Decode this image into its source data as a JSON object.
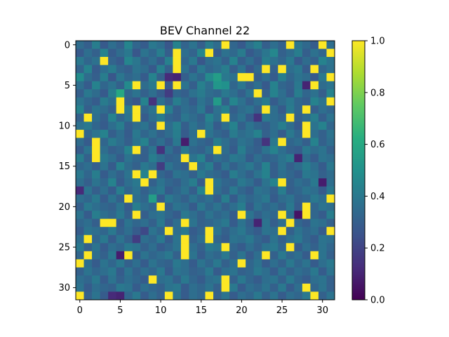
{
  "chart_data": {
    "type": "heatmap",
    "title": "BEV Channel 22",
    "xlabel": "",
    "ylabel": "",
    "rows": 32,
    "cols": 32,
    "x_ticks": [
      0,
      5,
      10,
      15,
      20,
      25,
      30
    ],
    "y_ticks": [
      0,
      5,
      10,
      15,
      20,
      25,
      30
    ],
    "x_tick_labels": [
      "0",
      "5",
      "10",
      "15",
      "20",
      "25",
      "30"
    ],
    "y_tick_labels": [
      "0",
      "5",
      "10",
      "15",
      "20",
      "25",
      "30"
    ],
    "colorbar": {
      "vmin": 0.0,
      "vmax": 1.0,
      "ticks": [
        0.0,
        0.2,
        0.4,
        0.6,
        0.8,
        1.0
      ],
      "tick_labels": [
        "0.0",
        "0.2",
        "0.4",
        "0.6",
        "0.8",
        "1.0"
      ],
      "colormap": "viridis"
    },
    "grid": false,
    "values": [
      [
        0.35,
        0.3,
        0.42,
        0.28,
        0.36,
        0.31,
        0.45,
        0.33,
        0.29,
        0.4,
        0.36,
        0.27,
        0.44,
        0.32,
        0.38,
        0.3,
        0.41,
        0.35,
        1.0,
        0.33,
        0.28,
        0.37,
        0.43,
        0.3,
        0.36,
        0.31,
        1.0,
        0.39,
        0.34,
        0.29,
        1.0,
        0.36
      ],
      [
        0.28,
        0.36,
        0.31,
        0.44,
        0.29,
        0.35,
        0.4,
        0.27,
        0.38,
        0.33,
        0.42,
        0.3,
        1.0,
        0.36,
        0.32,
        0.45,
        1.0,
        0.29,
        0.37,
        0.34,
        0.41,
        0.28,
        0.33,
        0.39,
        0.46,
        0.31,
        0.35,
        0.42,
        0.3,
        0.37,
        0.33,
        1.0
      ],
      [
        0.4,
        0.33,
        0.37,
        1.0,
        0.32,
        0.28,
        0.45,
        0.39,
        0.31,
        0.36,
        0.29,
        0.43,
        1.0,
        0.33,
        0.4,
        0.27,
        0.35,
        0.38,
        0.31,
        0.44,
        0.3,
        0.36,
        0.29,
        0.42,
        0.37,
        0.33,
        0.4,
        0.28,
        0.35,
        0.31,
        0.44,
        0.38
      ],
      [
        0.32,
        0.44,
        0.29,
        0.36,
        0.41,
        0.33,
        0.3,
        0.38,
        0.35,
        0.28,
        0.43,
        0.31,
        1.0,
        0.37,
        0.29,
        0.4,
        0.33,
        0.36,
        0.42,
        0.3,
        0.38,
        0.27,
        0.34,
        1.0,
        0.31,
        1.0,
        0.36,
        0.4,
        0.29,
        1.0,
        0.33,
        0.37
      ],
      [
        0.48,
        0.35,
        0.3,
        0.42,
        0.27,
        0.39,
        0.33,
        0.36,
        0.29,
        0.44,
        0.31,
        0.12,
        0.1,
        0.3,
        0.38,
        0.33,
        0.47,
        0.55,
        0.4,
        0.37,
        1.0,
        1.0,
        0.3,
        0.36,
        0.29,
        0.42,
        0.33,
        0.38,
        0.35,
        0.28,
        0.4,
        1.0
      ],
      [
        0.36,
        0.29,
        0.44,
        0.33,
        0.38,
        0.31,
        0.47,
        1.0,
        0.35,
        0.4,
        1.0,
        0.28,
        1.0,
        0.38,
        0.3,
        0.43,
        0.36,
        0.52,
        0.5,
        0.33,
        0.39,
        0.31,
        0.36,
        0.28,
        0.44,
        0.33,
        0.3,
        0.4,
        0.1,
        1.0,
        0.35,
        0.38
      ],
      [
        0.3,
        0.4,
        0.35,
        0.28,
        0.42,
        0.6,
        0.33,
        0.38,
        0.31,
        0.36,
        0.29,
        0.18,
        0.33,
        0.3,
        0.37,
        0.41,
        0.35,
        0.33,
        0.4,
        0.36,
        0.3,
        0.38,
        1.0,
        0.31,
        0.44,
        0.36,
        0.29,
        0.42,
        0.33,
        0.37,
        0.3,
        0.44
      ],
      [
        0.38,
        0.33,
        0.29,
        0.41,
        0.36,
        1.0,
        0.31,
        0.27,
        0.44,
        0.15,
        0.37,
        0.3,
        0.42,
        0.35,
        0.29,
        0.38,
        0.33,
        0.54,
        0.31,
        0.45,
        0.37,
        0.3,
        0.36,
        0.41,
        0.29,
        0.35,
        0.4,
        0.33,
        0.3,
        0.44,
        0.38,
        1.0
      ],
      [
        0.44,
        0.3,
        0.38,
        0.35,
        0.31,
        1.0,
        0.4,
        1.0,
        0.33,
        0.38,
        1.0,
        0.42,
        0.3,
        0.36,
        0.33,
        0.4,
        0.28,
        0.37,
        0.43,
        0.3,
        0.35,
        0.38,
        0.31,
        1.0,
        0.36,
        0.29,
        0.41,
        0.33,
        1.0,
        0.3,
        0.36,
        0.33
      ],
      [
        0.31,
        1.0,
        0.36,
        0.3,
        0.44,
        0.33,
        0.38,
        1.0,
        0.29,
        0.36,
        0.41,
        0.33,
        0.3,
        0.39,
        0.35,
        0.31,
        0.44,
        0.36,
        1.0,
        0.33,
        0.38,
        0.29,
        0.15,
        0.4,
        0.36,
        0.33,
        1.0,
        0.31,
        0.35,
        0.42,
        0.3,
        0.38
      ],
      [
        0.37,
        0.4,
        0.33,
        0.29,
        0.36,
        0.42,
        0.3,
        0.35,
        0.38,
        0.31,
        1.0,
        0.36,
        0.43,
        0.3,
        0.38,
        0.33,
        0.4,
        0.29,
        0.36,
        0.44,
        0.31,
        0.38,
        0.33,
        0.3,
        0.36,
        0.42,
        0.35,
        0.28,
        1.0,
        0.38,
        0.44,
        0.33
      ],
      [
        1.0,
        0.33,
        0.38,
        0.44,
        0.3,
        0.36,
        0.29,
        0.4,
        0.33,
        0.37,
        0.31,
        0.35,
        0.42,
        0.29,
        0.36,
        1.0,
        0.38,
        0.33,
        0.3,
        0.41,
        0.35,
        0.38,
        0.44,
        0.31,
        0.36,
        0.29,
        0.4,
        0.33,
        1.0,
        0.36,
        0.31,
        0.38
      ],
      [
        0.35,
        0.29,
        1.0,
        0.33,
        0.41,
        0.36,
        0.3,
        0.38,
        0.44,
        0.31,
        0.36,
        0.29,
        0.4,
        0.08,
        0.37,
        0.33,
        0.3,
        0.42,
        0.36,
        0.31,
        0.38,
        0.35,
        0.29,
        0.15,
        0.4,
        1.0,
        0.33,
        0.36,
        0.3,
        0.44,
        0.31,
        0.36
      ],
      [
        0.29,
        0.38,
        1.0,
        0.36,
        0.3,
        0.33,
        0.44,
        1.0,
        0.31,
        0.38,
        0.15,
        0.36,
        0.29,
        0.4,
        0.33,
        0.31,
        0.37,
        1.0,
        0.35,
        0.29,
        0.42,
        0.33,
        0.3,
        0.38,
        0.44,
        0.36,
        0.31,
        0.29,
        0.4,
        0.35,
        0.38,
        0.31
      ],
      [
        0.42,
        0.31,
        1.0,
        0.4,
        0.36,
        0.29,
        0.38,
        0.33,
        0.3,
        0.42,
        0.36,
        0.31,
        0.33,
        1.0,
        0.38,
        0.44,
        0.3,
        0.36,
        0.33,
        0.4,
        0.38,
        0.29,
        0.36,
        0.31,
        0.33,
        0.38,
        0.42,
        0.1,
        0.35,
        0.29,
        0.38,
        0.36
      ],
      [
        0.33,
        0.36,
        0.3,
        0.38,
        0.29,
        0.44,
        0.35,
        0.31,
        0.4,
        0.36,
        0.18,
        0.38,
        0.33,
        0.3,
        1.0,
        0.36,
        0.42,
        0.29,
        0.38,
        0.31,
        0.36,
        0.4,
        0.33,
        0.44,
        0.3,
        0.38,
        0.31,
        0.35,
        0.42,
        0.36,
        0.29,
        0.4
      ],
      [
        0.4,
        0.33,
        0.42,
        0.29,
        0.36,
        0.31,
        0.38,
        1.0,
        0.44,
        1.0,
        0.33,
        0.29,
        0.38,
        0.36,
        0.31,
        0.4,
        0.35,
        0.33,
        0.29,
        0.42,
        0.36,
        0.31,
        0.38,
        0.44,
        0.3,
        0.36,
        0.33,
        0.29,
        0.4,
        0.38,
        0.31,
        0.35
      ],
      [
        0.36,
        0.3,
        0.38,
        0.33,
        0.44,
        0.29,
        0.36,
        0.4,
        1.0,
        0.31,
        0.38,
        0.33,
        0.3,
        0.36,
        0.42,
        0.29,
        1.0,
        0.38,
        0.33,
        0.31,
        0.4,
        0.36,
        0.29,
        0.38,
        0.44,
        1.0,
        0.31,
        0.36,
        0.33,
        0.4,
        0.08,
        0.36
      ],
      [
        0.12,
        0.38,
        0.3,
        0.36,
        0.29,
        0.42,
        0.33,
        0.38,
        0.31,
        0.36,
        0.4,
        0.29,
        0.33,
        0.38,
        0.3,
        0.44,
        1.0,
        0.36,
        0.31,
        0.4,
        0.33,
        0.29,
        0.38,
        0.36,
        0.31,
        0.42,
        0.3,
        0.33,
        0.38,
        0.36,
        0.29,
        0.4
      ],
      [
        0.36,
        0.33,
        0.4,
        0.29,
        0.38,
        0.31,
        1.0,
        0.36,
        0.33,
        0.55,
        0.29,
        0.4,
        0.35,
        0.31,
        0.38,
        0.33,
        0.36,
        0.3,
        0.42,
        0.29,
        0.38,
        0.33,
        0.36,
        0.4,
        0.29,
        0.35,
        0.38,
        0.31,
        0.33,
        0.4,
        0.36,
        1.0
      ],
      [
        0.3,
        0.4,
        0.36,
        0.33,
        0.31,
        0.38,
        0.29,
        0.42,
        0.36,
        0.33,
        1.0,
        0.31,
        0.38,
        0.36,
        0.29,
        0.4,
        0.33,
        0.38,
        0.31,
        0.36,
        0.42,
        0.29,
        0.38,
        0.33,
        0.36,
        0.31,
        0.4,
        0.29,
        1.0,
        0.33,
        0.38,
        0.36
      ],
      [
        0.38,
        0.29,
        0.42,
        0.36,
        0.33,
        0.4,
        0.31,
        1.0,
        0.3,
        0.36,
        0.38,
        0.33,
        0.29,
        0.4,
        0.36,
        0.31,
        0.38,
        0.33,
        0.36,
        0.29,
        1.0,
        0.38,
        0.31,
        0.36,
        0.33,
        1.0,
        0.36,
        0.05,
        1.0,
        0.33,
        0.29,
        0.42
      ],
      [
        0.33,
        0.36,
        0.3,
        1.0,
        1.0,
        0.29,
        0.38,
        0.33,
        0.36,
        0.31,
        0.4,
        0.29,
        0.36,
        1.0,
        0.38,
        0.31,
        0.33,
        0.36,
        0.4,
        0.29,
        0.38,
        0.31,
        0.1,
        0.38,
        0.3,
        0.36,
        1.0,
        0.33,
        0.29,
        0.38,
        0.36,
        0.31
      ],
      [
        0.29,
        0.38,
        0.36,
        0.33,
        0.4,
        0.31,
        0.36,
        0.29,
        0.22,
        0.38,
        0.33,
        1.0,
        0.36,
        0.4,
        0.29,
        0.33,
        1.0,
        0.38,
        0.31,
        0.36,
        0.4,
        0.33,
        0.29,
        0.38,
        0.36,
        1.0,
        0.31,
        0.38,
        0.33,
        0.36,
        0.29,
        1.0
      ],
      [
        0.36,
        1.0,
        0.33,
        0.4,
        0.29,
        0.38,
        0.31,
        0.18,
        0.36,
        0.33,
        0.4,
        0.29,
        0.38,
        1.0,
        0.31,
        0.36,
        1.0,
        0.33,
        0.29,
        0.38,
        0.36,
        0.4,
        0.33,
        0.29,
        0.38,
        0.31,
        0.36,
        0.4,
        0.33,
        0.29,
        0.38,
        0.36
      ],
      [
        0.4,
        0.31,
        0.38,
        0.29,
        0.36,
        0.33,
        0.4,
        0.38,
        0.31,
        0.36,
        0.29,
        0.33,
        0.38,
        1.0,
        0.36,
        0.31,
        0.4,
        0.38,
        1.0,
        0.33,
        0.29,
        0.36,
        0.31,
        0.38,
        0.4,
        0.33,
        1.0,
        0.29,
        0.36,
        0.31,
        0.38,
        0.33
      ],
      [
        0.33,
        1.0,
        0.36,
        0.31,
        0.4,
        0.08,
        1.0,
        0.29,
        0.38,
        0.33,
        0.36,
        0.4,
        0.31,
        1.0,
        0.38,
        0.29,
        0.36,
        0.33,
        0.4,
        0.31,
        0.38,
        0.29,
        0.36,
        1.0,
        0.31,
        0.4,
        0.33,
        0.36,
        0.29,
        1.0,
        0.38,
        0.31
      ],
      [
        1.0,
        0.36,
        0.29,
        0.38,
        0.33,
        0.4,
        0.31,
        0.36,
        0.29,
        0.38,
        0.33,
        0.31,
        0.4,
        0.36,
        0.29,
        0.38,
        0.33,
        0.4,
        0.31,
        0.36,
        1.0,
        0.33,
        0.38,
        0.29,
        0.36,
        0.31,
        0.4,
        0.33,
        0.38,
        0.29,
        0.36,
        0.4
      ],
      [
        0.31,
        0.38,
        0.33,
        0.36,
        0.4,
        0.29,
        0.38,
        0.31,
        0.36,
        0.33,
        0.4,
        0.29,
        0.38,
        0.36,
        0.31,
        0.33,
        0.4,
        0.29,
        0.36,
        0.38,
        0.31,
        0.33,
        0.4,
        0.36,
        0.29,
        0.38,
        0.31,
        0.36,
        0.33,
        0.4,
        0.29,
        0.38
      ],
      [
        0.36,
        0.33,
        0.4,
        0.29,
        0.38,
        0.31,
        0.36,
        0.33,
        0.29,
        1.0,
        0.36,
        0.38,
        0.31,
        0.4,
        0.33,
        0.29,
        0.36,
        0.38,
        1.0,
        0.31,
        0.4,
        0.33,
        0.29,
        0.36,
        0.38,
        0.31,
        0.4,
        0.33,
        0.29,
        0.36,
        0.38,
        0.31
      ],
      [
        0.38,
        0.29,
        0.36,
        0.33,
        0.31,
        0.4,
        0.38,
        0.29,
        0.36,
        0.33,
        0.31,
        0.38,
        0.4,
        0.29,
        0.36,
        0.33,
        0.38,
        0.31,
        1.0,
        0.4,
        0.29,
        0.36,
        0.33,
        0.38,
        0.31,
        0.4,
        0.29,
        0.36,
        1.0,
        0.33,
        0.38,
        0.31
      ],
      [
        1.0,
        0.31,
        0.38,
        0.29,
        0.12,
        0.1,
        0.33,
        0.4,
        0.29,
        0.36,
        0.31,
        1.0,
        0.38,
        0.29,
        0.36,
        0.33,
        1.0,
        0.31,
        0.38,
        0.29,
        0.36,
        0.33,
        0.4,
        0.31,
        0.38,
        0.29,
        0.36,
        0.33,
        0.4,
        1.0,
        0.31,
        0.38
      ]
    ]
  }
}
